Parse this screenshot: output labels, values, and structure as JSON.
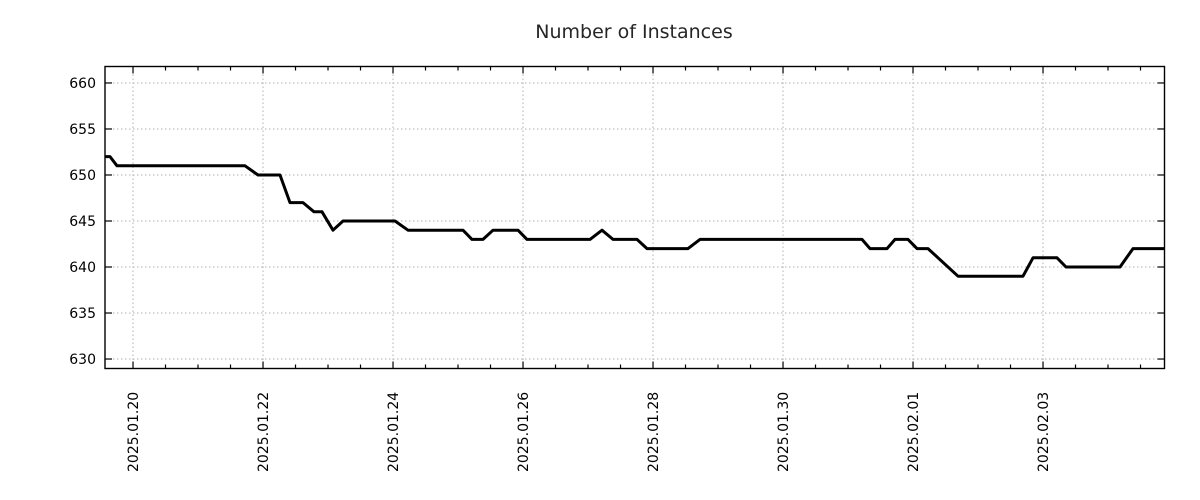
{
  "page": {
    "background_color": "#ffffff"
  },
  "chart_data": {
    "type": "line",
    "title": "Number of Instances",
    "xlabel": "",
    "ylabel": "",
    "legend": {
      "show": false
    },
    "grid": {
      "show": true,
      "color": "#b3b3b3",
      "style": "dotted"
    },
    "border_color": "#000000",
    "x_axis": {
      "unit": "days since 2025-01-20 00:00",
      "lim": [
        -0.431,
        15.869
      ],
      "major_ticks": [
        {
          "day": 0,
          "label": "2025.01.20"
        },
        {
          "day": 2,
          "label": "2025.01.22"
        },
        {
          "day": 4,
          "label": "2025.01.24"
        },
        {
          "day": 6,
          "label": "2025.01.26"
        },
        {
          "day": 8,
          "label": "2025.01.28"
        },
        {
          "day": 10,
          "label": "2025.01.30"
        },
        {
          "day": 12,
          "label": "2025.02.01"
        },
        {
          "day": 14,
          "label": "2025.02.03"
        }
      ],
      "minor_tick_step_days": 0.5,
      "label_rotation_deg": -90
    },
    "y_axis": {
      "lim": [
        628.97,
        661.79
      ],
      "major_ticks": [
        630,
        635,
        640,
        645,
        650,
        655,
        660
      ]
    },
    "series": [
      {
        "name": "instances",
        "color": "#000000",
        "stroke_width": 3,
        "points": [
          [
            -0.431,
            652
          ],
          [
            -0.354,
            652
          ],
          [
            -0.246,
            651
          ],
          [
            1.723,
            651
          ],
          [
            1.923,
            650
          ],
          [
            2.262,
            650
          ],
          [
            2.415,
            647
          ],
          [
            2.615,
            647
          ],
          [
            2.785,
            646
          ],
          [
            2.908,
            646
          ],
          [
            3.077,
            644
          ],
          [
            3.231,
            645
          ],
          [
            4.031,
            645
          ],
          [
            4.231,
            644
          ],
          [
            5.077,
            644
          ],
          [
            5.215,
            643
          ],
          [
            5.385,
            643
          ],
          [
            5.538,
            644
          ],
          [
            5.923,
            644
          ],
          [
            6.062,
            643
          ],
          [
            7.031,
            643
          ],
          [
            7.215,
            644
          ],
          [
            7.385,
            643
          ],
          [
            7.754,
            643
          ],
          [
            7.908,
            642
          ],
          [
            8.538,
            642
          ],
          [
            8.723,
            643
          ],
          [
            11.215,
            643
          ],
          [
            11.338,
            642
          ],
          [
            11.6,
            642
          ],
          [
            11.723,
            643
          ],
          [
            11.923,
            643
          ],
          [
            12.062,
            642
          ],
          [
            12.231,
            642
          ],
          [
            12.692,
            639
          ],
          [
            13.692,
            639
          ],
          [
            13.846,
            641
          ],
          [
            14.215,
            641
          ],
          [
            14.354,
            640
          ],
          [
            15.185,
            640
          ],
          [
            15.385,
            642
          ],
          [
            15.869,
            642
          ]
        ]
      }
    ]
  }
}
